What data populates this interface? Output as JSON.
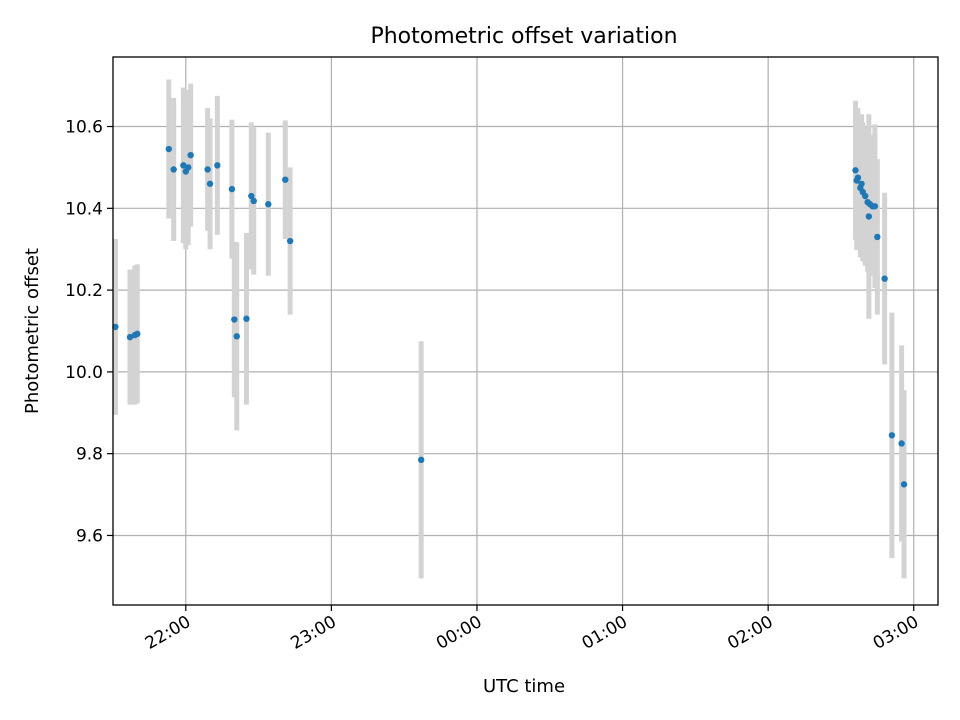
{
  "chart_data": {
    "type": "scatter",
    "title": "Photometric offset variation",
    "xlabel": "UTC time",
    "ylabel": "Photometric offset",
    "x_axis_type": "time",
    "xlim": [
      "21:30",
      "03:10"
    ],
    "ylim": [
      9.43,
      10.77
    ],
    "grid": true,
    "x_ticks": [
      "22:00",
      "23:00",
      "00:00",
      "01:00",
      "02:00",
      "03:00"
    ],
    "y_ticks": [
      "9.6",
      "9.8",
      "10.0",
      "10.2",
      "10.4",
      "10.6"
    ],
    "colors": {
      "point": "#1f77b4",
      "errorbar": "#d3d3d3",
      "grid": "#b0b0b0"
    },
    "points": [
      {
        "x": "21:31",
        "y": 10.11,
        "err": 0.215
      },
      {
        "x": "21:37",
        "y": 10.085,
        "err": 0.165
      },
      {
        "x": "21:39",
        "y": 10.09,
        "err": 0.17
      },
      {
        "x": "21:40",
        "y": 10.093,
        "err": 0.17
      },
      {
        "x": "21:53",
        "y": 10.545,
        "err": 0.17
      },
      {
        "x": "21:55",
        "y": 10.495,
        "err": 0.175
      },
      {
        "x": "21:59",
        "y": 10.505,
        "err": 0.19
      },
      {
        "x": "22:00",
        "y": 10.49,
        "err": 0.19
      },
      {
        "x": "22:01",
        "y": 10.5,
        "err": 0.19
      },
      {
        "x": "22:02",
        "y": 10.53,
        "err": 0.175
      },
      {
        "x": "22:09",
        "y": 10.495,
        "err": 0.15
      },
      {
        "x": "22:10",
        "y": 10.46,
        "err": 0.16
      },
      {
        "x": "22:13",
        "y": 10.505,
        "err": 0.17
      },
      {
        "x": "22:19",
        "y": 10.447,
        "err": 0.17
      },
      {
        "x": "22:20",
        "y": 10.128,
        "err": 0.19
      },
      {
        "x": "22:21",
        "y": 10.087,
        "err": 0.23
      },
      {
        "x": "22:25",
        "y": 10.13,
        "err": 0.21
      },
      {
        "x": "22:27",
        "y": 10.43,
        "err": 0.18
      },
      {
        "x": "22:28",
        "y": 10.418,
        "err": 0.18
      },
      {
        "x": "22:34",
        "y": 10.41,
        "err": 0.175
      },
      {
        "x": "22:41",
        "y": 10.47,
        "err": 0.145
      },
      {
        "x": "22:43",
        "y": 10.32,
        "err": 0.18
      },
      {
        "x": "23:37",
        "y": 9.785,
        "err": 0.29
      },
      {
        "x": "02:36",
        "y": 10.493,
        "err": 0.17
      },
      {
        "x": "02:36.5",
        "y": 10.468,
        "err": 0.17
      },
      {
        "x": "02:37",
        "y": 10.475,
        "err": 0.17
      },
      {
        "x": "02:38",
        "y": 10.45,
        "err": 0.17
      },
      {
        "x": "02:38.5",
        "y": 10.46,
        "err": 0.17
      },
      {
        "x": "02:39",
        "y": 10.44,
        "err": 0.17
      },
      {
        "x": "02:40",
        "y": 10.43,
        "err": 0.17
      },
      {
        "x": "02:41",
        "y": 10.415,
        "err": 0.17
      },
      {
        "x": "02:41.5",
        "y": 10.38,
        "err": 0.25
      },
      {
        "x": "02:42",
        "y": 10.41,
        "err": 0.17
      },
      {
        "x": "02:43",
        "y": 10.405,
        "err": 0.17
      },
      {
        "x": "02:44",
        "y": 10.405,
        "err": 0.2
      },
      {
        "x": "02:45",
        "y": 10.33,
        "err": 0.19
      },
      {
        "x": "02:48",
        "y": 10.228,
        "err": 0.21
      },
      {
        "x": "02:51",
        "y": 9.845,
        "err": 0.3
      },
      {
        "x": "02:55",
        "y": 9.825,
        "err": 0.24
      },
      {
        "x": "02:56",
        "y": 9.725,
        "err": 0.23
      }
    ]
  }
}
